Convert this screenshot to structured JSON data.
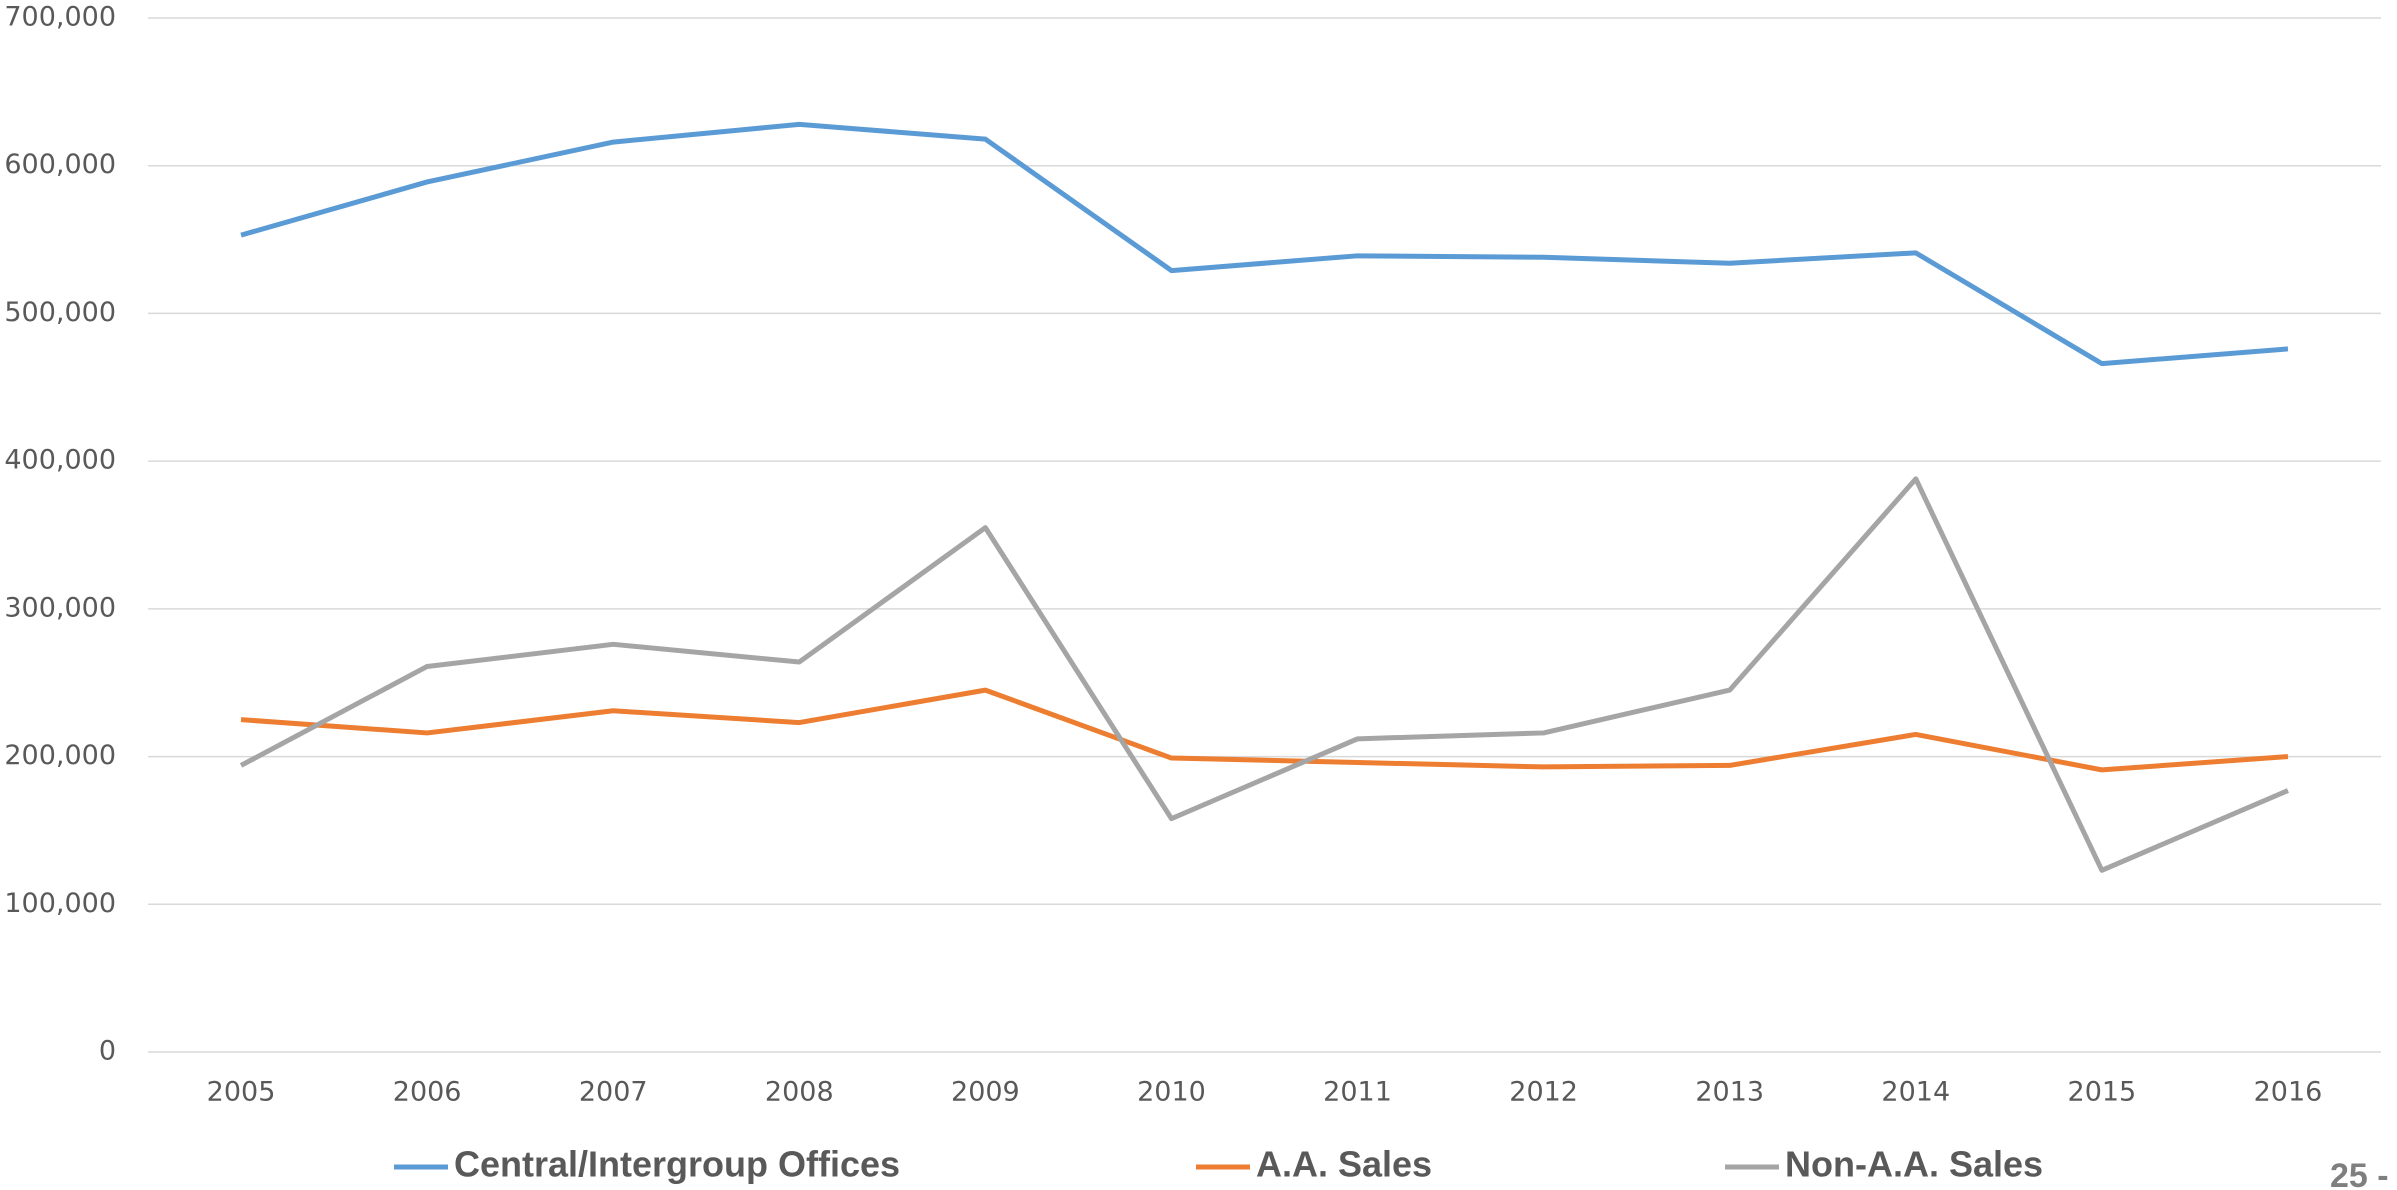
{
  "chart_data": {
    "type": "line",
    "categories": [
      "2005",
      "2006",
      "2007",
      "2008",
      "2009",
      "2010",
      "2011",
      "2012",
      "2013",
      "2014",
      "2015",
      "2016"
    ],
    "series": [
      {
        "name": "Central/Intergroup Offices",
        "color": "#5b9bd5",
        "values": [
          553000,
          589000,
          616000,
          628000,
          618000,
          529000,
          539000,
          538000,
          534000,
          541000,
          466000,
          476000
        ]
      },
      {
        "name": "A.A. Sales",
        "color": "#ed7d31",
        "values": [
          225000,
          216000,
          231000,
          223000,
          245000,
          199000,
          196000,
          193000,
          194000,
          215000,
          191000,
          200000
        ]
      },
      {
        "name": "Non-A.A. Sales",
        "color": "#a5a5a5",
        "values": [
          194000,
          261000,
          276000,
          264000,
          355000,
          158000,
          212000,
          216000,
          245000,
          388000,
          123000,
          177000
        ]
      }
    ],
    "ylim": [
      0,
      700000
    ],
    "yticks": [
      0,
      {
        "value": 100000,
        "label": "100,000"
      },
      {
        "value": 200000,
        "label": "200,000"
      },
      {
        "value": 300000,
        "label": "300,000"
      },
      {
        "value": 400000,
        "label": "400,000"
      },
      {
        "value": 500000,
        "label": "500,000"
      },
      {
        "value": 600000,
        "label": "600,000"
      },
      {
        "value": 700000,
        "label": "700,000"
      }
    ],
    "grid": true,
    "legend": "bottom"
  },
  "page_number": "25 -"
}
